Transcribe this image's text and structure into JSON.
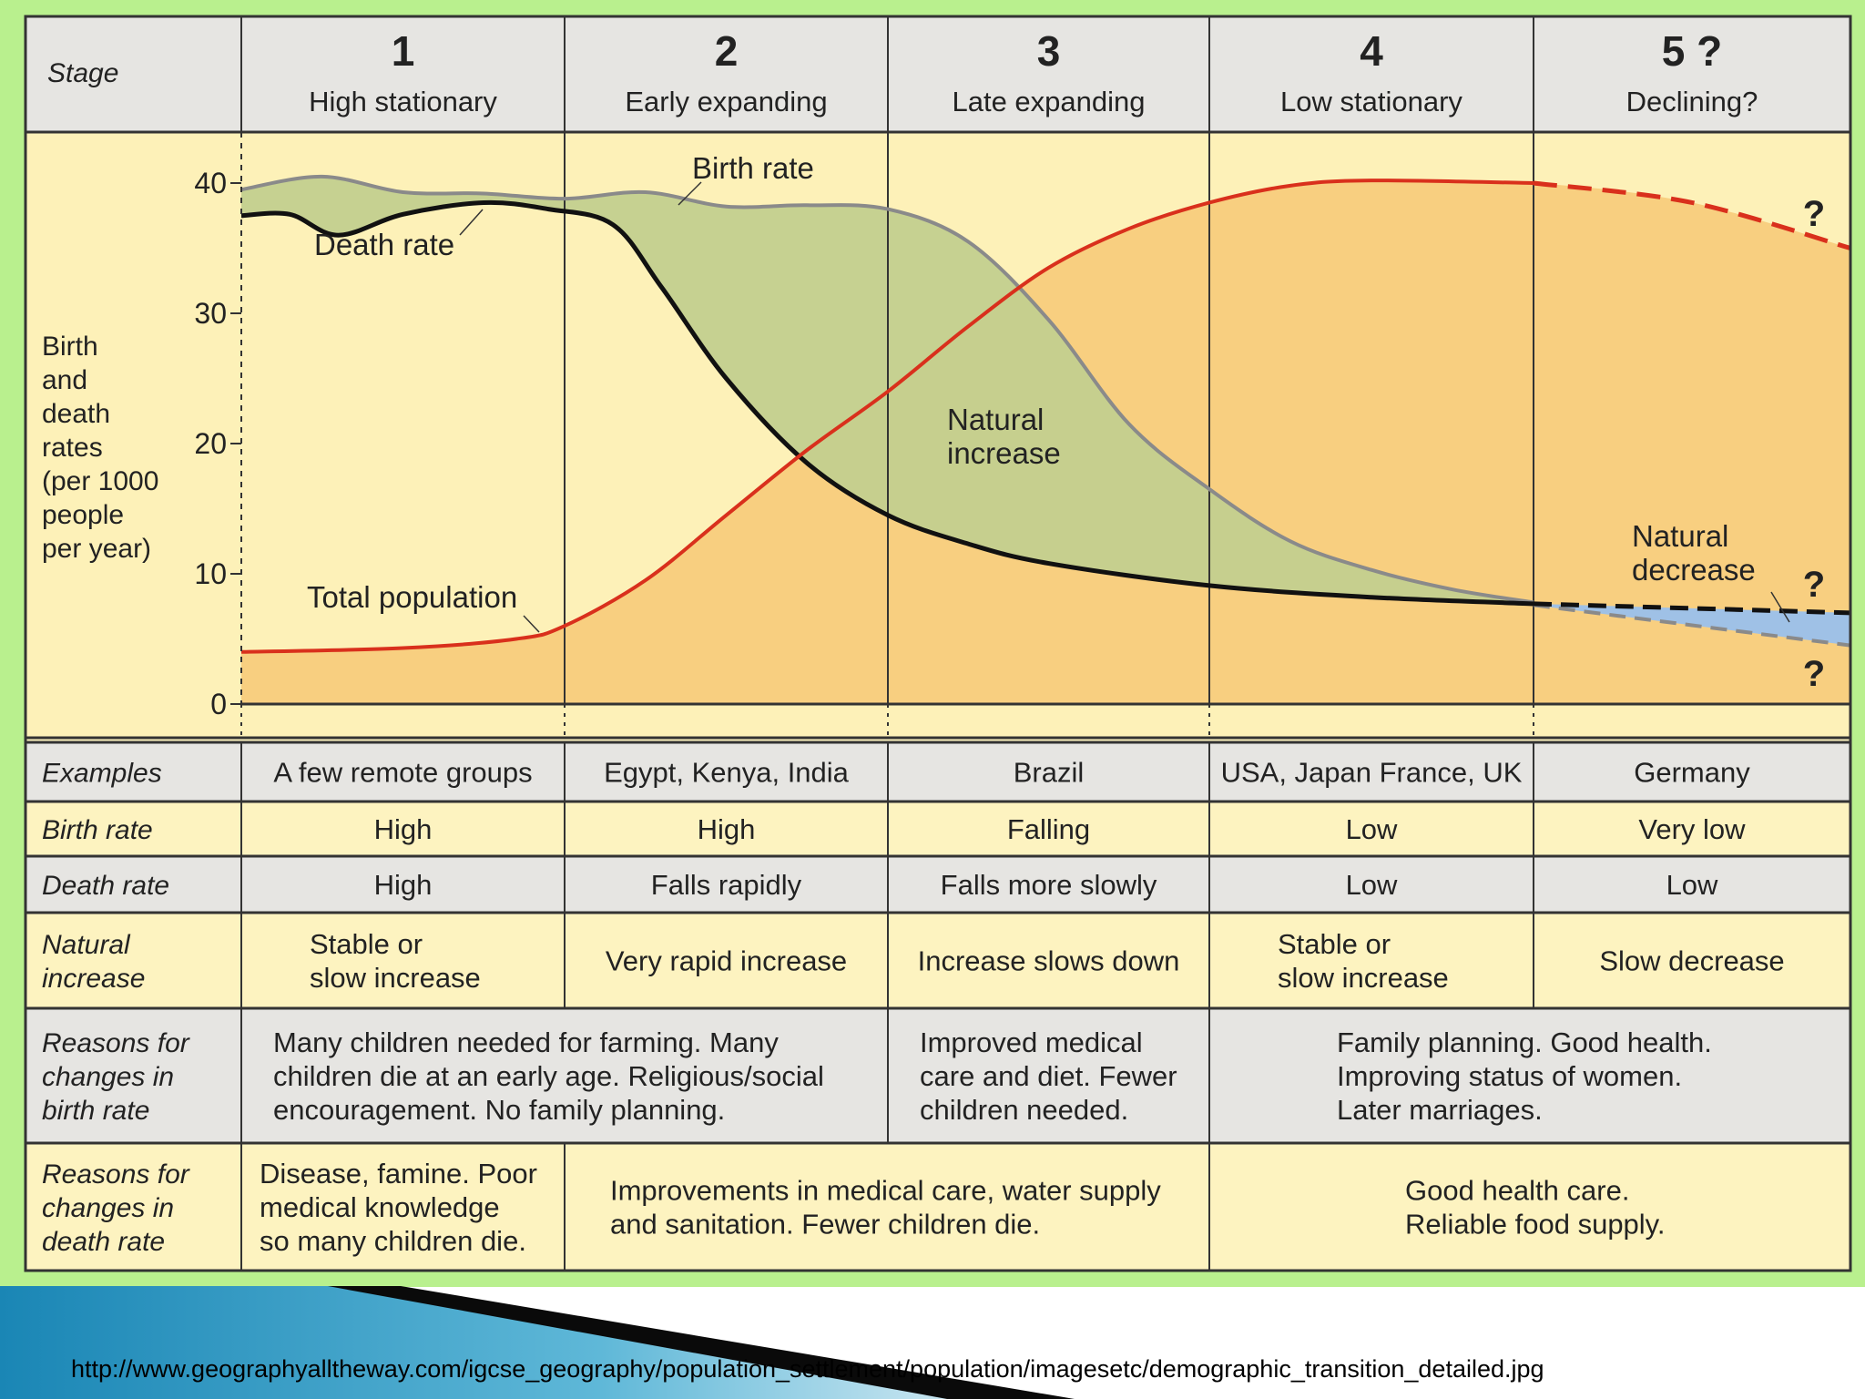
{
  "header": {
    "stage_label": "Stage",
    "stages": [
      {
        "number": "1",
        "name": "High stationary"
      },
      {
        "number": "2",
        "name": "Early expanding"
      },
      {
        "number": "3",
        "name": "Late expanding"
      },
      {
        "number": "4",
        "name": "Low stationary"
      },
      {
        "number": "5 ?",
        "name": "Declining?"
      }
    ]
  },
  "chart_data": {
    "type": "line",
    "ylabel": [
      "Birth",
      "and",
      "death",
      "rates",
      "(per 1000",
      "people",
      "per year)"
    ],
    "ylim": [
      0,
      42
    ],
    "yticks": [
      0,
      10,
      20,
      30,
      40
    ],
    "x_stage_range": [
      1,
      6
    ],
    "series": [
      {
        "name": "Birth rate",
        "color": "#8a8a8a",
        "points": [
          [
            1.0,
            39.5
          ],
          [
            1.25,
            40.5
          ],
          [
            1.5,
            39.3
          ],
          [
            1.75,
            39.2
          ],
          [
            2.0,
            38.8
          ],
          [
            2.25,
            39.3
          ],
          [
            2.5,
            38.2
          ],
          [
            2.75,
            38.3
          ],
          [
            3.0,
            38.0
          ],
          [
            3.25,
            35.5
          ],
          [
            3.5,
            29.5
          ],
          [
            3.75,
            21.5
          ],
          [
            4.0,
            16.5
          ],
          [
            4.25,
            12.5
          ],
          [
            4.5,
            10.3
          ],
          [
            4.75,
            8.8
          ],
          [
            5.0,
            7.8
          ]
        ]
      },
      {
        "name": "Death rate",
        "color": "#111111",
        "points": [
          [
            1.0,
            37.5
          ],
          [
            1.15,
            37.6
          ],
          [
            1.3,
            36.0
          ],
          [
            1.5,
            37.6
          ],
          [
            1.75,
            38.5
          ],
          [
            1.95,
            38.0
          ],
          [
            2.15,
            36.8
          ],
          [
            2.3,
            32.0
          ],
          [
            2.5,
            25.0
          ],
          [
            2.75,
            18.5
          ],
          [
            3.0,
            14.5
          ],
          [
            3.25,
            12.3
          ],
          [
            3.5,
            10.8
          ],
          [
            4.0,
            9.1
          ],
          [
            4.5,
            8.2
          ],
          [
            5.0,
            7.7
          ]
        ]
      },
      {
        "name": "Total population",
        "color": "#d9301c",
        "points": [
          [
            1.0,
            4.0
          ],
          [
            1.5,
            4.3
          ],
          [
            1.85,
            5.0
          ],
          [
            2.0,
            6.0
          ],
          [
            2.25,
            9.5
          ],
          [
            2.5,
            14.5
          ],
          [
            2.75,
            19.5
          ],
          [
            3.0,
            24.0
          ],
          [
            3.25,
            29.0
          ],
          [
            3.5,
            33.5
          ],
          [
            3.75,
            36.5
          ],
          [
            4.0,
            38.5
          ],
          [
            4.25,
            39.8
          ],
          [
            4.5,
            40.2
          ],
          [
            5.0,
            40.0
          ]
        ]
      },
      {
        "name": "Total population (projected)",
        "color": "#d9301c",
        "dashed": true,
        "points": [
          [
            5.0,
            40.0
          ],
          [
            5.5,
            38.5
          ],
          [
            6.0,
            35.0
          ]
        ]
      },
      {
        "name": "Death rate (projected)",
        "color": "#111111",
        "dashed": true,
        "points": [
          [
            5.0,
            7.7
          ],
          [
            6.0,
            7.0
          ]
        ]
      },
      {
        "name": "Birth rate (projected)",
        "color": "#8a8a8a",
        "dashed": true,
        "points": [
          [
            5.0,
            7.6
          ],
          [
            6.0,
            4.5
          ]
        ]
      }
    ],
    "annotations": {
      "birth_rate": "Birth rate",
      "death_rate": "Death rate",
      "total_population": "Total population",
      "natural_increase": [
        "Natural",
        "increase"
      ],
      "natural_decrease": [
        "Natural",
        "decrease"
      ],
      "question_mark": "?"
    },
    "colors": {
      "natural_increase_fill": "#c3cf8e",
      "natural_decrease_fill": "#9fc1e6",
      "population_fill": "#f8cf80",
      "plot_background": "#fdf1b8"
    }
  },
  "table": {
    "rows": [
      {
        "label": [
          "Examples"
        ],
        "cells": [
          [
            "A few remote groups"
          ],
          [
            "Egypt, Kenya, India"
          ],
          [
            "Brazil"
          ],
          [
            "USA, Japan France, UK"
          ],
          [
            "Germany"
          ]
        ]
      },
      {
        "label": [
          "Birth rate"
        ],
        "cells": [
          [
            "High"
          ],
          [
            "High"
          ],
          [
            "Falling"
          ],
          [
            "Low"
          ],
          [
            "Very low"
          ]
        ]
      },
      {
        "label": [
          "Death rate"
        ],
        "cells": [
          [
            "High"
          ],
          [
            "Falls rapidly"
          ],
          [
            "Falls more slowly"
          ],
          [
            "Low"
          ],
          [
            "Low"
          ]
        ]
      },
      {
        "label": [
          "Natural",
          "increase"
        ],
        "cells": [
          [
            "Stable or",
            "slow increase"
          ],
          [
            "Very rapid increase"
          ],
          [
            "Increase slows down"
          ],
          [
            "Stable or",
            "slow increase"
          ],
          [
            "Slow decrease"
          ]
        ]
      },
      {
        "label": [
          "Reasons for",
          "changes in",
          "birth rate"
        ],
        "cells": [
          [
            "Many children needed for farming. Many",
            "children die at an early age. Religious/social",
            "encouragement. No family planning."
          ],
          [
            "Improved medical",
            "care and diet. Fewer",
            "children needed."
          ],
          [
            "Family planning. Good health.",
            "Improving status of women.",
            "Later marriages."
          ]
        ]
      },
      {
        "label": [
          "Reasons for",
          "changes in",
          "death rate"
        ],
        "cells": [
          [
            "Disease, famine. Poor",
            "medical knowledge",
            "so many children die."
          ],
          [
            "Improvements in medical care, water supply",
            "and sanitation. Fewer children die."
          ],
          [
            "Good health care.",
            "Reliable food supply."
          ]
        ]
      }
    ]
  },
  "footer": {
    "source_url": "http://www.geographyalltheway.com/igcse_geography/population_settlement/population/imagesetc/demographic_transition_detailed.jpg"
  }
}
